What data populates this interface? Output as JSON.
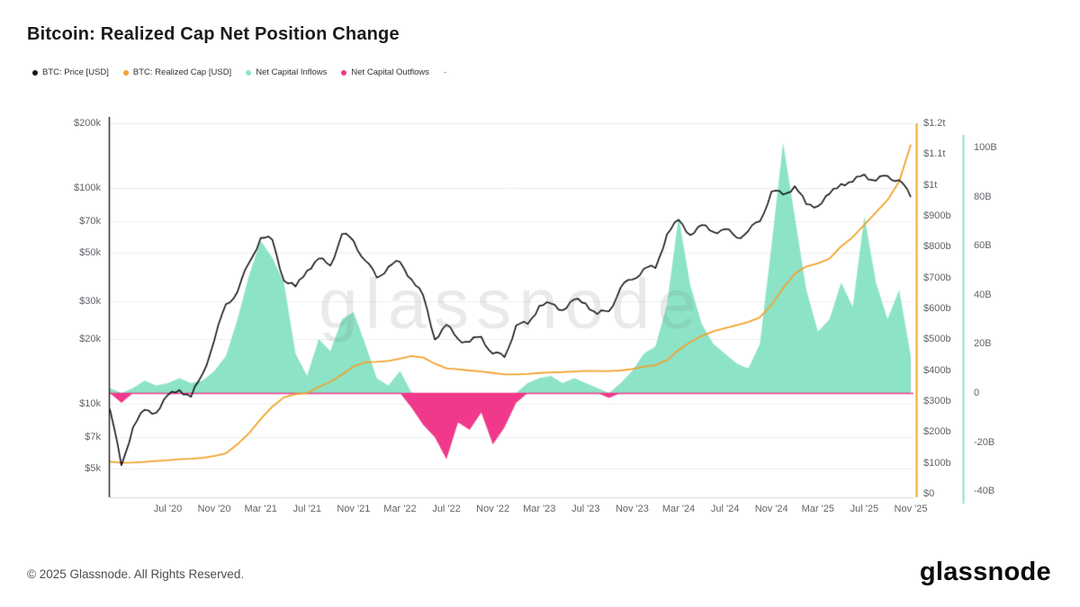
{
  "page": {
    "title": "Bitcoin: Realized Cap Net Position Change",
    "watermark": "glassnode",
    "footer_copyright": "© 2025 Glassnode. All Rights Reserved.",
    "footer_logo": "glassnode"
  },
  "legend": {
    "items": [
      {
        "label": "BTC: Price [USD]",
        "color": "#141414"
      },
      {
        "label": "BTC: Realized Cap [USD]",
        "color": "#f2a32d"
      },
      {
        "label": "Net Capital Inflows",
        "color": "#8ce3c7"
      },
      {
        "label": "Net Capital Outflows",
        "color": "#f0398b"
      }
    ],
    "suffix": "-"
  },
  "chart_data": {
    "type": "line+area",
    "title": "Bitcoin: Realized Cap Net Position Change",
    "x_start_month": "2020-02",
    "x_end_month": "2025-11",
    "x_frequency": "monthly",
    "x_ticks": [
      {
        "label": "Jul '20",
        "month_index": 5
      },
      {
        "label": "Nov '20",
        "month_index": 9
      },
      {
        "label": "Mar '21",
        "month_index": 13
      },
      {
        "label": "Jul '21",
        "month_index": 17
      },
      {
        "label": "Nov '21",
        "month_index": 21
      },
      {
        "label": "Mar '22",
        "month_index": 25
      },
      {
        "label": "Jul '22",
        "month_index": 29
      },
      {
        "label": "Nov '22",
        "month_index": 33
      },
      {
        "label": "Mar '23",
        "month_index": 37
      },
      {
        "label": "Jul '23",
        "month_index": 41
      },
      {
        "label": "Nov '23",
        "month_index": 45
      },
      {
        "label": "Mar '24",
        "month_index": 49
      },
      {
        "label": "Jul '24",
        "month_index": 53
      },
      {
        "label": "Nov '24",
        "month_index": 57
      },
      {
        "label": "Mar '25",
        "month_index": 61
      },
      {
        "label": "Jul '25",
        "month_index": 65
      },
      {
        "label": "Nov '25",
        "month_index": 69
      }
    ],
    "price_axis": {
      "scale": "log",
      "side": "left",
      "ticks": [
        {
          "label": "$200k",
          "value_usd": 200000
        },
        {
          "label": "$100k",
          "value_usd": 100000
        },
        {
          "label": "$70k",
          "value_usd": 70000
        },
        {
          "label": "$50k",
          "value_usd": 50000
        },
        {
          "label": "$30k",
          "value_usd": 30000
        },
        {
          "label": "$20k",
          "value_usd": 20000
        },
        {
          "label": "$10k",
          "value_usd": 10000
        },
        {
          "label": "$7k",
          "value_usd": 7000
        },
        {
          "label": "$5k",
          "value_usd": 5000
        }
      ]
    },
    "rcap_axis": {
      "scale": "linear",
      "side": "right",
      "ticks": [
        {
          "label": "$1.2t",
          "value_busd": 1200
        },
        {
          "label": "$1.1t",
          "value_busd": 1100
        },
        {
          "label": "$1t",
          "value_busd": 1000
        },
        {
          "label": "$900b",
          "value_busd": 900
        },
        {
          "label": "$800b",
          "value_busd": 800
        },
        {
          "label": "$700b",
          "value_busd": 700
        },
        {
          "label": "$600b",
          "value_busd": 600
        },
        {
          "label": "$500b",
          "value_busd": 500
        },
        {
          "label": "$400b",
          "value_busd": 400
        },
        {
          "label": "$300b",
          "value_busd": 300
        },
        {
          "label": "$200b",
          "value_busd": 200
        },
        {
          "label": "$100b",
          "value_busd": 100
        },
        {
          "label": "$0",
          "value_busd": 0
        }
      ]
    },
    "flow_axis": {
      "scale": "linear",
      "side": "far-right",
      "ticks": [
        {
          "label": "100B",
          "value_busd": 100
        },
        {
          "label": "80B",
          "value_busd": 80
        },
        {
          "label": "60B",
          "value_busd": 60
        },
        {
          "label": "40B",
          "value_busd": 40
        },
        {
          "label": "20B",
          "value_busd": 20
        },
        {
          "label": "0",
          "value_busd": 0
        },
        {
          "label": "-20B",
          "value_busd": -20
        },
        {
          "label": "-40B",
          "value_busd": -40
        }
      ]
    },
    "series": [
      {
        "name": "BTC: Price [USD]",
        "color": "#141414",
        "unit": "USD (thousands)",
        "scale": "log",
        "values": [
          9.5,
          5.2,
          7.8,
          9.4,
          9.1,
          11.0,
          11.6,
          10.8,
          13.8,
          19.7,
          29.0,
          33.1,
          45.2,
          58.8,
          57.7,
          37.3,
          35.0,
          41.5,
          47.2,
          43.8,
          61.3,
          57.0,
          46.2,
          38.5,
          43.2,
          45.5,
          37.7,
          31.8,
          19.9,
          23.3,
          20.0,
          19.4,
          20.5,
          17.1,
          16.5,
          23.1,
          23.5,
          28.5,
          29.2,
          27.2,
          30.5,
          29.2,
          26.1,
          26.9,
          34.6,
          37.7,
          42.3,
          42.6,
          61.2,
          71.3,
          60.6,
          67.5,
          62.7,
          64.6,
          59.0,
          63.3,
          70.2,
          96.4,
          93.4,
          102.1,
          84.3,
          82.5,
          94.2,
          104.6,
          107.1,
          115.8,
          108.2,
          114.0,
          109.0,
          91.0
        ]
      },
      {
        "name": "BTC: Realized Cap [USD]",
        "color": "#f2a32d",
        "unit": "USD (billions)",
        "values": [
          104,
          100,
          101,
          103,
          106,
          108,
          112,
          113,
          116,
          122,
          131,
          160,
          196,
          242,
          282,
          312,
          322,
          326,
          346,
          362,
          386,
          412,
          426,
          427,
          430,
          437,
          446,
          441,
          421,
          406,
          403,
          399,
          396,
          391,
          386,
          386,
          388,
          391,
          393,
          394,
          396,
          398,
          397,
          397,
          399,
          404,
          411,
          416,
          432,
          466,
          491,
          511,
          526,
          536,
          546,
          556,
          571,
          611,
          666,
          712,
          736,
          746,
          761,
          801,
          831,
          871,
          911,
          951,
          1011,
          1131
        ]
      },
      {
        "name": "Realized Cap Net Position Change",
        "inflow_name": "Net Capital Inflows",
        "outflow_name": "Net Capital Outflows",
        "inflow_color": "#8ce3c7",
        "outflow_color": "#f0398b",
        "unit": "USD (billions)",
        "values": [
          2,
          -4,
          2,
          5,
          3,
          4,
          6,
          4,
          5,
          9,
          15,
          30,
          48,
          62,
          55,
          45,
          16,
          7,
          22,
          17,
          30,
          33,
          20,
          6,
          3,
          9,
          -6,
          -13,
          -18,
          -27,
          -12,
          -15,
          -8,
          -21,
          -14,
          -4,
          4,
          6,
          7,
          4,
          6,
          4,
          2,
          -2,
          4,
          9,
          16,
          19,
          36,
          72,
          44,
          28,
          20,
          16,
          12,
          10,
          20,
          60,
          102,
          72,
          42,
          25,
          30,
          45,
          35,
          72,
          45,
          30,
          42,
          15
        ]
      }
    ],
    "grid": "horizontal-only",
    "zero_line_color": "#f0398b"
  }
}
